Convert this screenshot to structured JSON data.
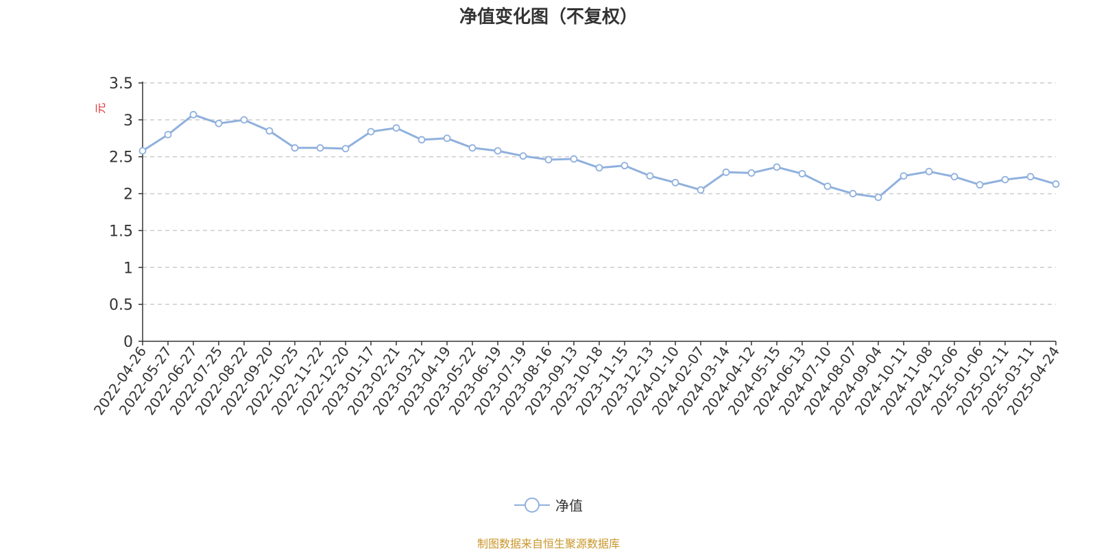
{
  "chart_data": {
    "type": "line",
    "title": "净值变化图（不复权）",
    "ylabel": "元",
    "xlabel": "",
    "ylim": [
      0,
      3.5
    ],
    "yticks": [
      "0",
      "0.5",
      "1",
      "1.5",
      "2",
      "2.5",
      "3",
      "3.5"
    ],
    "grid": true,
    "legend_position": "bottom-center",
    "x_tick_labels": [
      "2022-04-26",
      "2022-05-27",
      "2022-06-27",
      "2022-07-25",
      "2022-08-22",
      "2022-09-20",
      "2022-10-25",
      "2022-11-22",
      "2022-12-20",
      "2023-01-17",
      "2023-02-21",
      "2023-03-21",
      "2023-04-19",
      "2023-05-22",
      "2023-06-19",
      "2023-07-19",
      "2023-08-16",
      "2023-09-13",
      "2023-10-18",
      "2023-11-15",
      "2023-12-13",
      "2024-01-10",
      "2024-02-07",
      "2024-03-14",
      "2024-04-12",
      "2024-05-15",
      "2024-06-13",
      "2024-07-10",
      "2024-08-07",
      "2024-09-04",
      "2024-10-11",
      "2024-11-08",
      "2024-12-06",
      "2025-01-06",
      "2025-02-11",
      "2025-03-11",
      "2025-04-24"
    ],
    "series": [
      {
        "name": "净值",
        "color": "#8fb0dd",
        "x": [
          "2022-04-26",
          "2022-05-27",
          "2022-06-27",
          "2022-07-25",
          "2022-08-22",
          "2022-09-20",
          "2022-10-25",
          "2022-11-22",
          "2022-12-20",
          "2023-01-17",
          "2023-02-21",
          "2023-03-21",
          "2023-04-19",
          "2023-05-22",
          "2023-06-19",
          "2023-07-19",
          "2023-08-16",
          "2023-09-13",
          "2023-10-18",
          "2023-11-15",
          "2023-12-13",
          "2024-01-10",
          "2024-02-07",
          "2024-03-14",
          "2024-04-12",
          "2024-05-15",
          "2024-06-13",
          "2024-07-10",
          "2024-08-07",
          "2024-09-04",
          "2024-10-11",
          "2024-11-08",
          "2024-12-06",
          "2025-01-06",
          "2025-02-11",
          "2025-03-11",
          "2025-04-24"
        ],
        "values": [
          2.58,
          2.8,
          3.07,
          2.95,
          3.0,
          2.85,
          2.62,
          2.62,
          2.61,
          2.84,
          2.89,
          2.73,
          2.75,
          2.62,
          2.58,
          2.51,
          2.46,
          2.47,
          2.35,
          2.38,
          2.24,
          2.15,
          2.05,
          2.29,
          2.28,
          2.36,
          2.27,
          2.1,
          2.0,
          1.95,
          2.24,
          2.3,
          2.23,
          2.12,
          2.19,
          2.23,
          2.13
        ]
      }
    ]
  },
  "legend": {
    "label": "净值"
  },
  "source": "制图数据来自恒生聚源数据库"
}
